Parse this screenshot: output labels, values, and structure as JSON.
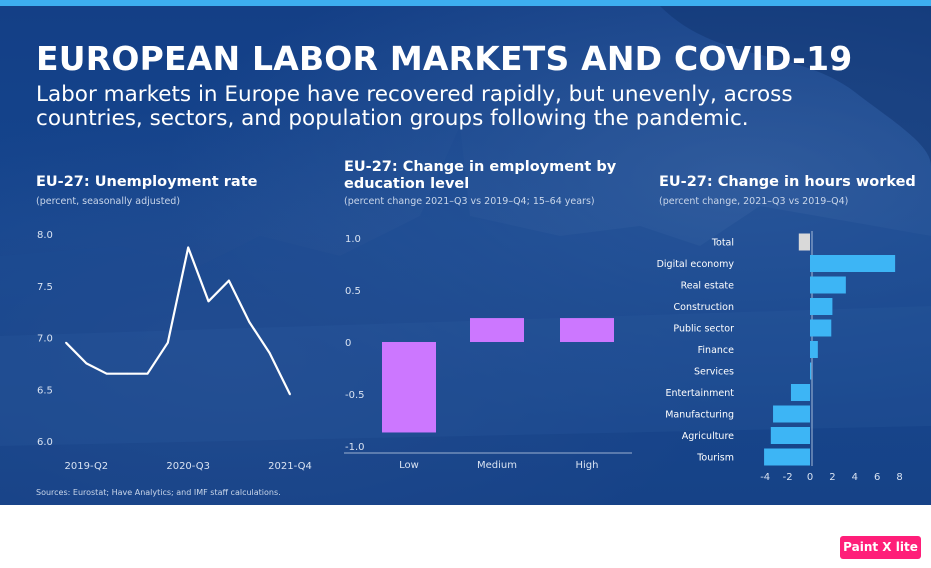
{
  "header": {
    "title": "EUROPEAN LABOR MARKETS AND COVID-19",
    "subtitle": "Labor markets in Europe have recovered rapidly, but unevenly, across countries, sectors, and population groups following the pandemic."
  },
  "colors": {
    "accent": "#3daef0",
    "bar_purple": "#cc77ff",
    "bar_blue": "#3db5f5",
    "bar_total": "#d9d9d9",
    "line": "#ffffff",
    "background": "#15468f"
  },
  "footer": {
    "source": "Sources: Eurostat; Have Analytics; and IMF staff calculations."
  },
  "logo": {
    "text": "Paint X lite"
  },
  "chart_data": [
    {
      "type": "line",
      "title": "EU-27:  Unemployment rate",
      "subtitle": "(percent, seasonally adjusted)",
      "x": [
        "2019-Q1",
        "2019-Q2",
        "2019-Q3",
        "2019-Q4",
        "2020-Q1",
        "2020-Q2",
        "2020-Q3",
        "2020-Q4",
        "2021-Q1",
        "2021-Q2",
        "2021-Q3",
        "2021-Q4"
      ],
      "x_tick_labels": [
        "2019-Q2",
        "2020-Q3",
        "2021-Q4"
      ],
      "values": [
        6.95,
        6.75,
        6.65,
        6.65,
        6.65,
        6.95,
        7.87,
        7.35,
        7.55,
        7.15,
        6.85,
        6.45
      ],
      "y_ticks": [
        6.0,
        6.5,
        7.0,
        7.5,
        8.0
      ],
      "y_tick_labels": [
        "6.0",
        "6.5",
        "7.0",
        "7.5",
        "8.0"
      ],
      "ylim": [
        6.0,
        8.0
      ]
    },
    {
      "type": "bar",
      "title": "EU-27: Change in employment by education level",
      "subtitle": "(percent change 2021–Q3 vs 2019–Q4; 15–64 years)",
      "categories": [
        "Low",
        "Medium",
        "High"
      ],
      "values": [
        -0.87,
        0.23,
        0.23
      ],
      "y_ticks": [
        -1.0,
        -0.5,
        0,
        0.5,
        1.0
      ],
      "y_tick_labels": [
        "-1.0",
        "-0.5",
        "0",
        "0.5",
        "1.0"
      ],
      "ylim": [
        -1.0,
        1.0
      ]
    },
    {
      "type": "bar",
      "orientation": "horizontal",
      "title": "EU-27: Change in hours worked",
      "subtitle": "(percent change, 2021–Q3 vs 2019–Q4)",
      "categories": [
        "Total",
        "Digital economy",
        "Real estate",
        "Construction",
        "Public sector",
        "Finance",
        "Services",
        "Entertainment",
        "Manufacturing",
        "Agriculture",
        "Tourism"
      ],
      "values": [
        -1.0,
        7.6,
        3.2,
        2.0,
        1.9,
        0.7,
        0.1,
        -1.7,
        -3.3,
        -3.5,
        -4.1
      ],
      "x_ticks": [
        -4,
        -2,
        0,
        2,
        4,
        6,
        8
      ],
      "x_tick_labels": [
        "-4",
        "-2",
        "0",
        "2",
        "4",
        "6",
        "8"
      ],
      "xlim": [
        -5,
        8.5
      ]
    }
  ]
}
